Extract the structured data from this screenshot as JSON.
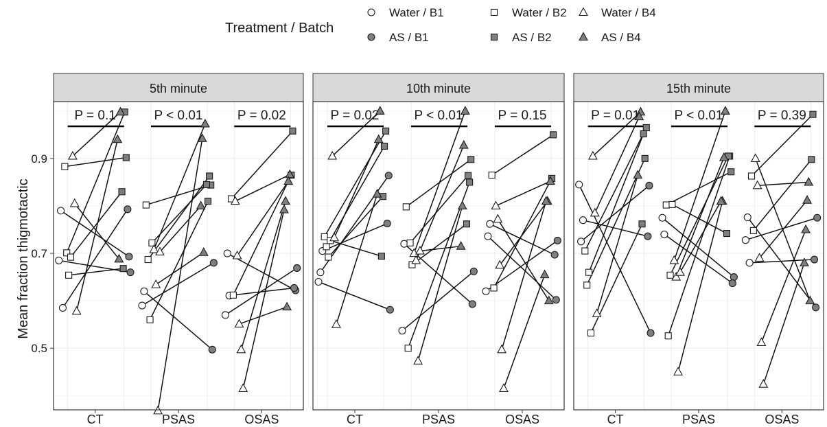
{
  "chart_data": {
    "type": "scatter",
    "ylabel": "Mean fraction thigmotactic",
    "ylim": [
      0.37,
      1.02
    ],
    "yticks": [
      0.5,
      0.7,
      0.9
    ],
    "ytick_labels": [
      "0.5",
      "0.7",
      "0.9"
    ],
    "categories": [
      "CT",
      "PSAS",
      "OSAS"
    ],
    "grid": true,
    "legend": {
      "title": "Treatment / Batch",
      "placement": "top",
      "entries": [
        {
          "label": "Water / B1",
          "shape": "circle",
          "fill": "#ffffff"
        },
        {
          "label": "Water / B2",
          "shape": "square",
          "fill": "#ffffff"
        },
        {
          "label": "Water / B4",
          "shape": "triangle",
          "fill": "#ffffff"
        },
        {
          "label": "AS / B1",
          "shape": "circle",
          "fill": "#7f7f7f"
        },
        {
          "label": "AS / B2",
          "shape": "square",
          "fill": "#7f7f7f"
        },
        {
          "label": "AS / B4",
          "shape": "triangle",
          "fill": "#7f7f7f"
        }
      ]
    },
    "colors": {
      "water_fill": "#ffffff",
      "as_fill": "#7f7f7f",
      "strip_bg": "#d9d9d9",
      "grid": "#ebebeb"
    },
    "panels": [
      {
        "title": "5th minute",
        "pvalues": [
          "P = 0.1",
          "P < 0.01",
          "P = 0.02"
        ],
        "pairs": [
          [
            {
              "shape": "circle",
              "water": 0.685,
              "as": 0.66
            },
            {
              "shape": "circle",
              "water": 0.79,
              "as": 0.693
            },
            {
              "shape": "circle",
              "water": 0.585,
              "as": 0.793
            },
            {
              "shape": "square",
              "water": 0.883,
              "as": 0.902
            },
            {
              "shape": "square",
              "water": 0.701,
              "as": 0.998
            },
            {
              "shape": "square",
              "water": 0.654,
              "as": 0.668
            },
            {
              "shape": "square",
              "water": 0.692,
              "as": 0.83
            },
            {
              "shape": "triangle",
              "water": 0.905,
              "as": 0.998
            },
            {
              "shape": "triangle",
              "water": 0.805,
              "as": 0.688
            },
            {
              "shape": "triangle",
              "water": 0.578,
              "as": 0.94
            }
          ],
          [
            {
              "shape": "circle",
              "water": 0.59,
              "as": 0.68
            },
            {
              "shape": "circle",
              "water": 0.62,
              "as": 0.497
            },
            {
              "shape": "square",
              "water": 0.802,
              "as": 0.844
            },
            {
              "shape": "square",
              "water": 0.687,
              "as": 0.863
            },
            {
              "shape": "square",
              "water": 0.56,
              "as": 0.81
            },
            {
              "shape": "square",
              "water": 0.722,
              "as": 0.845
            },
            {
              "shape": "triangle",
              "water": 0.708,
              "as": 0.973
            },
            {
              "shape": "triangle",
              "water": 0.634,
              "as": 0.702
            },
            {
              "shape": "triangle",
              "water": 0.368,
              "as": 0.942
            },
            {
              "shape": "triangle",
              "water": 0.703,
              "as": 0.8
            }
          ],
          [
            {
              "shape": "circle",
              "water": 0.57,
              "as": 0.669
            },
            {
              "shape": "circle",
              "water": 0.7,
              "as": 0.622
            },
            {
              "shape": "circle",
              "water": 0.611,
              "as": 0.627
            },
            {
              "shape": "square",
              "water": 0.815,
              "as": 0.958
            },
            {
              "shape": "square",
              "water": 0.612,
              "as": 0.865
            },
            {
              "shape": "triangle",
              "water": 0.81,
              "as": 0.866
            },
            {
              "shape": "triangle",
              "water": 0.695,
              "as": 0.852
            },
            {
              "shape": "triangle",
              "water": 0.551,
              "as": 0.587
            },
            {
              "shape": "triangle",
              "water": 0.497,
              "as": 0.81
            },
            {
              "shape": "triangle",
              "water": 0.415,
              "as": 0.792
            }
          ]
        ]
      },
      {
        "title": "10th minute",
        "pvalues": [
          "P = 0.02",
          "P < 0.01",
          "P = 0.15"
        ],
        "pairs": [
          [
            {
              "shape": "circle",
              "water": 0.64,
              "as": 0.581
            },
            {
              "shape": "circle",
              "water": 0.66,
              "as": 0.864
            },
            {
              "shape": "circle",
              "water": 0.705,
              "as": 0.763
            },
            {
              "shape": "square",
              "water": 0.735,
              "as": 0.958
            },
            {
              "shape": "square",
              "water": 0.714,
              "as": 0.926
            },
            {
              "shape": "square",
              "water": 0.692,
              "as": 0.82
            },
            {
              "shape": "square",
              "water": 0.727,
              "as": 0.694
            },
            {
              "shape": "triangle",
              "water": 0.905,
              "as": 1.0
            },
            {
              "shape": "triangle",
              "water": 0.733,
              "as": 0.94
            },
            {
              "shape": "triangle",
              "water": 0.55,
              "as": 0.825
            }
          ],
          [
            {
              "shape": "circle",
              "water": 0.537,
              "as": 0.662
            },
            {
              "shape": "circle",
              "water": 0.72,
              "as": 0.593
            },
            {
              "shape": "square",
              "water": 0.798,
              "as": 0.898
            },
            {
              "shape": "square",
              "water": 0.5,
              "as": 0.85
            },
            {
              "shape": "square",
              "water": 0.722,
              "as": 0.864
            },
            {
              "shape": "square",
              "water": 0.676,
              "as": 0.762
            },
            {
              "shape": "triangle",
              "water": 0.7,
              "as": 1.0
            },
            {
              "shape": "triangle",
              "water": 0.685,
              "as": 0.928
            },
            {
              "shape": "triangle",
              "water": 0.473,
              "as": 0.8
            },
            {
              "shape": "triangle",
              "water": 0.705,
              "as": 0.715
            }
          ],
          [
            {
              "shape": "circle",
              "water": 0.62,
              "as": 0.727
            },
            {
              "shape": "circle",
              "water": 0.736,
              "as": 0.602
            },
            {
              "shape": "circle",
              "water": 0.762,
              "as": 0.697
            },
            {
              "shape": "square",
              "water": 0.865,
              "as": 0.95
            },
            {
              "shape": "square",
              "water": 0.627,
              "as": 0.858
            },
            {
              "shape": "triangle",
              "water": 0.8,
              "as": 0.852
            },
            {
              "shape": "triangle",
              "water": 0.772,
              "as": 0.6
            },
            {
              "shape": "triangle",
              "water": 0.675,
              "as": 0.81
            },
            {
              "shape": "triangle",
              "water": 0.497,
              "as": 0.81
            },
            {
              "shape": "triangle",
              "water": 0.415,
              "as": 0.655
            }
          ]
        ]
      },
      {
        "title": "15th minute",
        "pvalues": [
          "P = 0.01",
          "P < 0.01",
          "P = 0.39"
        ],
        "pairs": [
          [
            {
              "shape": "circle",
              "water": 0.845,
              "as": 0.532
            },
            {
              "shape": "circle",
              "water": 0.725,
              "as": 0.843
            },
            {
              "shape": "circle",
              "water": 0.77,
              "as": 0.736
            },
            {
              "shape": "square",
              "water": 0.705,
              "as": 0.965
            },
            {
              "shape": "square",
              "water": 0.633,
              "as": 0.9
            },
            {
              "shape": "square",
              "water": 0.66,
              "as": 0.952
            },
            {
              "shape": "square",
              "water": 0.532,
              "as": 0.762
            },
            {
              "shape": "triangle",
              "water": 0.905,
              "as": 0.998
            },
            {
              "shape": "triangle",
              "water": 0.785,
              "as": 0.988
            },
            {
              "shape": "triangle",
              "water": 0.573,
              "as": 0.865
            }
          ],
          [
            {
              "shape": "circle",
              "water": 0.775,
              "as": 0.65
            },
            {
              "shape": "circle",
              "water": 0.74,
              "as": 0.637
            },
            {
              "shape": "square",
              "water": 0.802,
              "as": 0.872
            },
            {
              "shape": "square",
              "water": 0.526,
              "as": 0.905
            },
            {
              "shape": "square",
              "water": 0.654,
              "as": 0.905
            },
            {
              "shape": "square",
              "water": 0.803,
              "as": 0.742
            },
            {
              "shape": "triangle",
              "water": 0.685,
              "as": 1.0
            },
            {
              "shape": "triangle",
              "water": 0.65,
              "as": 0.902
            },
            {
              "shape": "triangle",
              "water": 0.45,
              "as": 0.81
            },
            {
              "shape": "triangle",
              "water": 0.66,
              "as": 0.81
            }
          ],
          [
            {
              "shape": "circle",
              "water": 0.728,
              "as": 0.775
            },
            {
              "shape": "circle",
              "water": 0.776,
              "as": 0.586
            },
            {
              "shape": "circle",
              "water": 0.68,
              "as": 0.687
            },
            {
              "shape": "square",
              "water": 0.863,
              "as": 0.993
            },
            {
              "shape": "square",
              "water": 0.748,
              "as": 0.898
            },
            {
              "shape": "triangle",
              "water": 0.9,
              "as": 0.6
            },
            {
              "shape": "triangle",
              "water": 0.843,
              "as": 0.85
            },
            {
              "shape": "triangle",
              "water": 0.69,
              "as": 0.812
            },
            {
              "shape": "triangle",
              "water": 0.512,
              "as": 0.75
            },
            {
              "shape": "triangle",
              "water": 0.424,
              "as": 0.68
            }
          ]
        ]
      }
    ]
  }
}
